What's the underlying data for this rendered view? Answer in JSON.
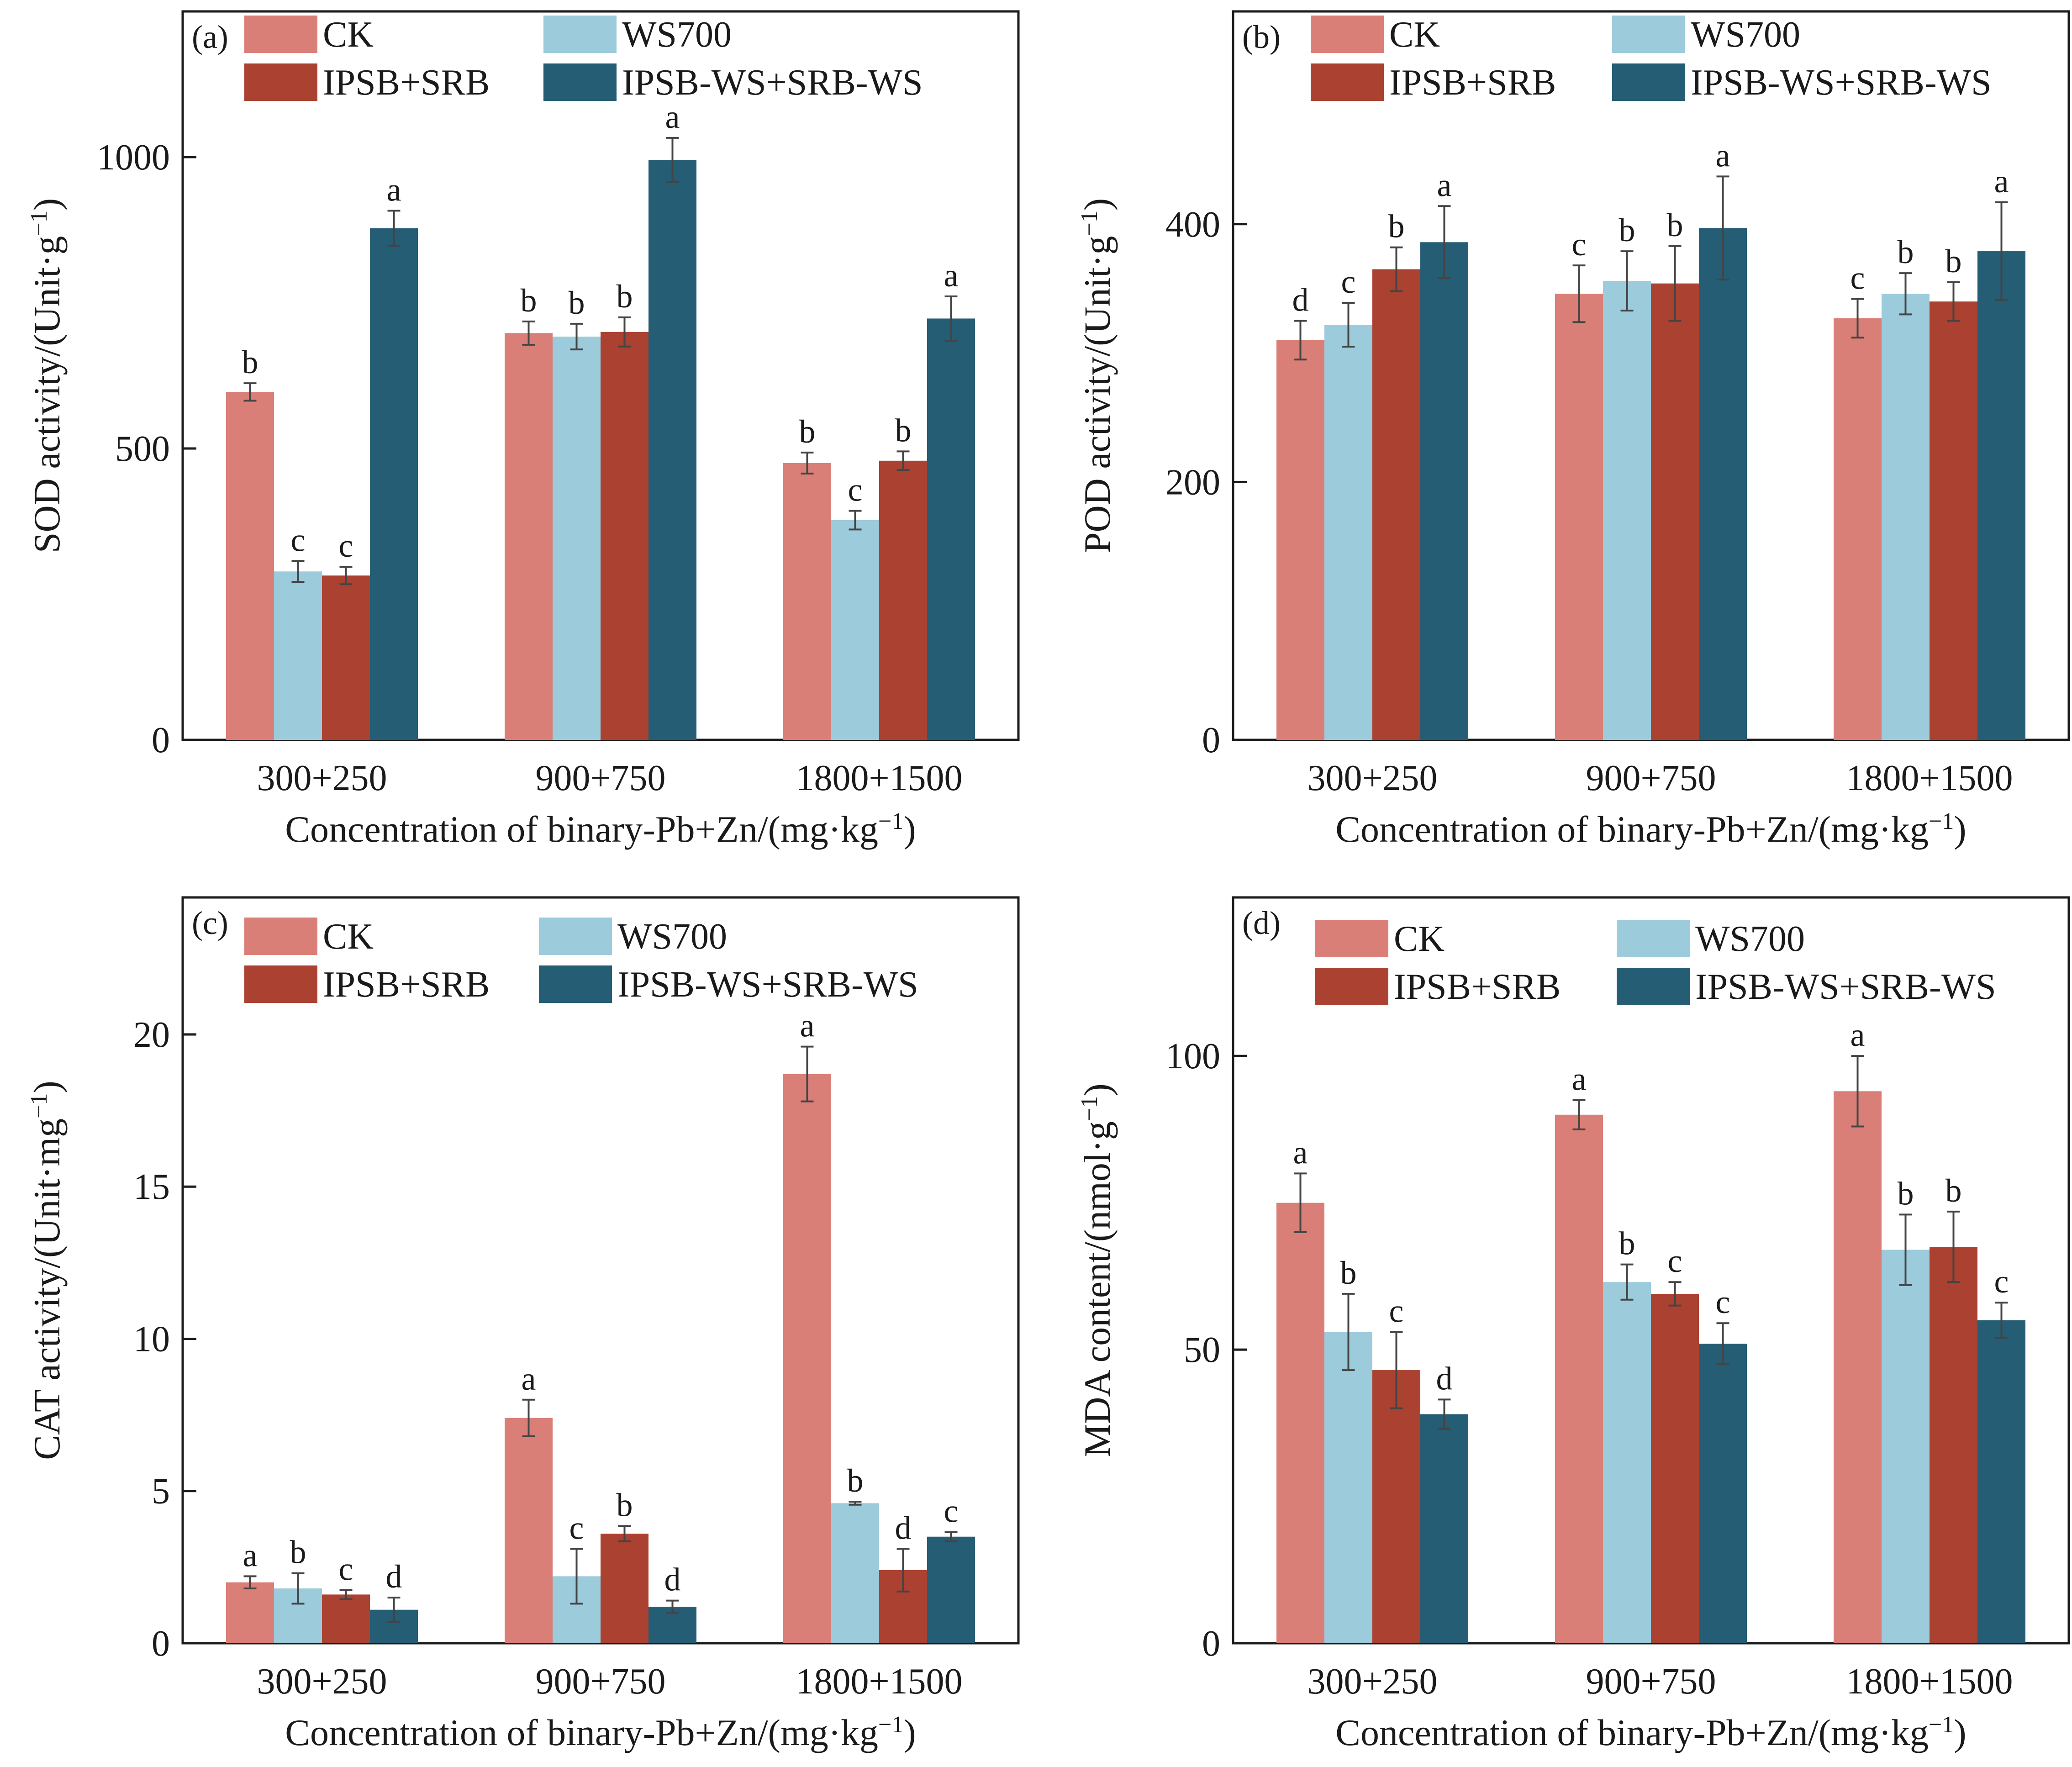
{
  "colors": {
    "CK": "#da7f77",
    "WS700": "#9ccbdc",
    "IPSB+SRB": "#ab4131",
    "IPSB-WS+SRB-WS": "#255d74",
    "axis": "#1a1a1a",
    "error": "#444444"
  },
  "chart_data": [
    {
      "panel": "(a)",
      "type": "bar",
      "ylabel": "SOD activity/(Unit·g",
      "ylabel_sup": "−1",
      "ylabel_end": ")",
      "xlabel": "Concentration of binary-Pb+Zn/(mg·kg",
      "xlabel_sup": "−1",
      "xlabel_end": ")",
      "ylim": [
        0,
        1250
      ],
      "yticks": [
        0,
        500,
        1000
      ],
      "categories": [
        "300+250",
        "900+750",
        "1800+1500"
      ],
      "legend": [
        "CK",
        "WS700",
        "IPSB+SRB",
        "IPSB-WS+SRB-WS"
      ],
      "series": [
        {
          "name": "CK",
          "values": [
            597,
            698,
            475
          ],
          "errors": [
            15,
            20,
            18
          ],
          "letters": [
            "b",
            "b",
            "b"
          ]
        },
        {
          "name": "WS700",
          "values": [
            289,
            692,
            377
          ],
          "errors": [
            18,
            22,
            16
          ],
          "letters": [
            "c",
            "b",
            "c"
          ]
        },
        {
          "name": "IPSB+SRB",
          "values": [
            282,
            700,
            479
          ],
          "errors": [
            15,
            25,
            16
          ],
          "letters": [
            "c",
            "b",
            "b"
          ]
        },
        {
          "name": "IPSB-WS+SRB-WS",
          "values": [
            878,
            995,
            723
          ],
          "errors": [
            30,
            38,
            38
          ],
          "letters": [
            "a",
            "a",
            "a"
          ]
        }
      ]
    },
    {
      "panel": "(b)",
      "type": "bar",
      "ylabel": "POD activity/(Unit·g",
      "ylabel_sup": "−1",
      "ylabel_end": ")",
      "xlabel": "Concentration of binary-Pb+Zn/(mg·kg",
      "xlabel_sup": "−1",
      "xlabel_end": ")",
      "ylim": [
        0,
        565
      ],
      "yticks": [
        0,
        200,
        400
      ],
      "categories": [
        "300+250",
        "900+750",
        "1800+1500"
      ],
      "legend": [
        "CK",
        "WS700",
        "IPSB+SRB",
        "IPSB-WS+SRB-WS"
      ],
      "series": [
        {
          "name": "CK",
          "values": [
            310,
            346,
            327
          ],
          "errors": [
            15,
            22,
            15
          ],
          "letters": [
            "d",
            "c",
            "c"
          ]
        },
        {
          "name": "WS700",
          "values": [
            322,
            356,
            346
          ],
          "errors": [
            17,
            23,
            16
          ],
          "letters": [
            "c",
            "b",
            "b"
          ]
        },
        {
          "name": "IPSB+SRB",
          "values": [
            365,
            354,
            340
          ],
          "errors": [
            17,
            29,
            15
          ],
          "letters": [
            "b",
            "b",
            "b"
          ]
        },
        {
          "name": "IPSB-WS+SRB-WS",
          "values": [
            386,
            397,
            379
          ],
          "errors": [
            28,
            40,
            38
          ],
          "letters": [
            "a",
            "a",
            "a"
          ]
        }
      ]
    },
    {
      "panel": "(c)",
      "type": "bar",
      "ylabel": "CAT activity/(Unit·mg",
      "ylabel_sup": "−1",
      "ylabel_end": ")",
      "xlabel": "Concentration of binary-Pb+Zn/(mg·kg",
      "xlabel_sup": "−1",
      "xlabel_end": ")",
      "ylim": [
        0,
        24.5
      ],
      "yticks": [
        0,
        5,
        10,
        15,
        20
      ],
      "categories": [
        "300+250",
        "900+750",
        "1800+1500"
      ],
      "legend": [
        "CK",
        "WS700",
        "IPSB+SRB",
        "IPSB-WS+SRB-WS"
      ],
      "series": [
        {
          "name": "CK",
          "values": [
            2.0,
            7.4,
            18.7
          ],
          "errors": [
            0.2,
            0.6,
            0.9
          ],
          "letters": [
            "a",
            "a",
            "a"
          ]
        },
        {
          "name": "WS700",
          "values": [
            1.8,
            2.2,
            4.6
          ],
          "errors": [
            0.5,
            0.9,
            0.05
          ],
          "letters": [
            "b",
            "c",
            "b"
          ]
        },
        {
          "name": "IPSB+SRB",
          "values": [
            1.6,
            3.6,
            2.4
          ],
          "errors": [
            0.15,
            0.25,
            0.7
          ],
          "letters": [
            "c",
            "b",
            "d"
          ]
        },
        {
          "name": "IPSB-WS+SRB-WS",
          "values": [
            1.1,
            1.2,
            3.5
          ],
          "errors": [
            0.4,
            0.2,
            0.15
          ],
          "letters": [
            "d",
            "d",
            "c"
          ]
        }
      ]
    },
    {
      "panel": "(d)",
      "type": "bar",
      "ylabel": "MDA content/(nmol·g",
      "ylabel_sup": "−1",
      "ylabel_end": ")",
      "xlabel": "Concentration of binary-Pb+Zn/(mg·kg",
      "xlabel_sup": "−1",
      "xlabel_end": ")",
      "ylim": [
        0,
        127
      ],
      "yticks": [
        0,
        50,
        100
      ],
      "categories": [
        "300+250",
        "900+750",
        "1800+1500"
      ],
      "legend": [
        "CK",
        "WS700",
        "IPSB+SRB",
        "IPSB-WS+SRB-WS"
      ],
      "series": [
        {
          "name": "CK",
          "values": [
            75,
            90,
            94
          ],
          "errors": [
            5,
            2.5,
            6
          ],
          "letters": [
            "a",
            "a",
            "a"
          ]
        },
        {
          "name": "WS700",
          "values": [
            53,
            61.5,
            67
          ],
          "errors": [
            6.5,
            3,
            6
          ],
          "letters": [
            "b",
            "b",
            "b"
          ]
        },
        {
          "name": "IPSB+SRB",
          "values": [
            46.5,
            59.5,
            67.5
          ],
          "errors": [
            6.5,
            2,
            6
          ],
          "letters": [
            "c",
            "c",
            "b"
          ]
        },
        {
          "name": "IPSB-WS+SRB-WS",
          "values": [
            39,
            51,
            55
          ],
          "errors": [
            2.5,
            3.5,
            3
          ],
          "letters": [
            "d",
            "c",
            "c"
          ]
        }
      ]
    }
  ]
}
